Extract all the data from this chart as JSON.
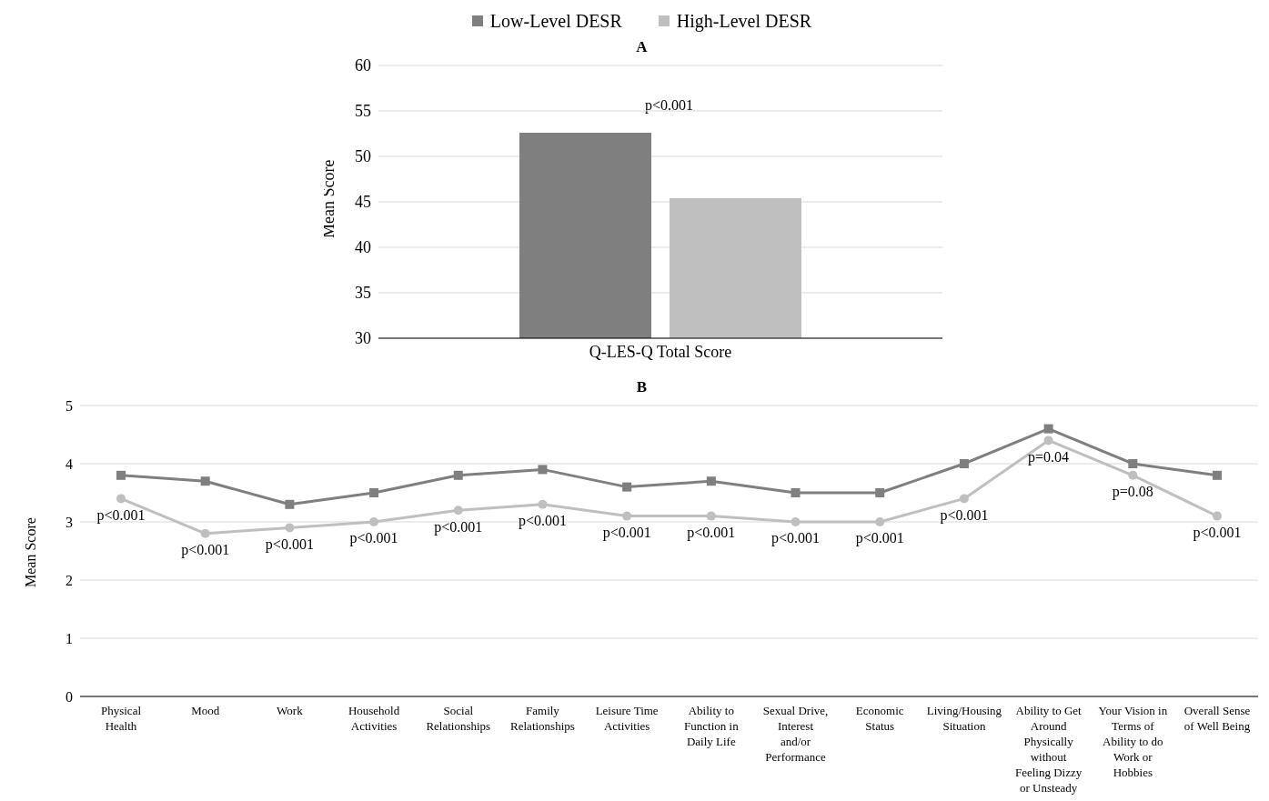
{
  "chart_data": [
    {
      "type": "bar",
      "title": "A",
      "categories": [
        "Q-LES-Q Total Score"
      ],
      "ylabel": "Mean Score",
      "ylim": [
        30,
        60
      ],
      "yticks": [
        30,
        35,
        40,
        45,
        50,
        55,
        60
      ],
      "grid": "y",
      "legend": "top",
      "series": [
        {
          "name": "Low-Level DESR",
          "color": "#7f7f7f",
          "values": [
            52.6
          ]
        },
        {
          "name": "High-Level DESR",
          "color": "#bfbfbf",
          "values": [
            45.4
          ]
        }
      ],
      "annotations": [
        "p<0.001"
      ]
    },
    {
      "type": "line",
      "title": "B",
      "ylabel": "Mean Score",
      "ylim": [
        0,
        5
      ],
      "yticks": [
        0,
        1,
        2,
        3,
        4,
        5
      ],
      "grid": "y",
      "categories": [
        "Physical Health",
        "Mood",
        "Work",
        "Household Activities",
        "Social Relationships",
        "Family Relationships",
        "Leisure Time Activities",
        "Ability to Function in Daily Life",
        "Sexual Drive, Interest and/or Performance",
        "Economic Status",
        "Living/Housing Situation",
        "Ability to Get Around Physically without Feeling Dizzy or Unsteady",
        "Your Vision in Terms of Ability to do Work or Hobbies",
        "Overall Sense of Well Being"
      ],
      "series": [
        {
          "color": "#7f7f7f",
          "marker": "square",
          "values": [
            3.8,
            3.7,
            3.3,
            3.5,
            3.8,
            3.9,
            3.6,
            3.7,
            3.5,
            3.5,
            4.0,
            4.6,
            4.0,
            3.8
          ]
        },
        {
          "color": "#bfbfbf",
          "marker": "circle",
          "values": [
            3.4,
            2.8,
            2.9,
            3.0,
            3.2,
            3.3,
            3.1,
            3.1,
            3.0,
            3.0,
            3.4,
            4.4,
            3.8,
            3.1
          ]
        }
      ],
      "annotations": [
        {
          "text": "p<0.001",
          "x": "Physical Health",
          "y": 3.4
        },
        {
          "text": "p<0.001",
          "x": "Mood",
          "y": 2.8
        },
        {
          "text": "p<0.001",
          "x": "Work",
          "y": 2.9
        },
        {
          "text": "p<0.001",
          "x": "Household Activities",
          "y": 3.0
        },
        {
          "text": "p<0.001",
          "x": "Social Relationships",
          "y": 3.2
        },
        {
          "text": "p<0.001",
          "x": "Family Relationships",
          "y": 3.3
        },
        {
          "text": "p<0.001",
          "x": "Leisure Time Activities",
          "y": 3.1
        },
        {
          "text": "p<0.001",
          "x": "Ability to Function in Daily Life",
          "y": 3.1
        },
        {
          "text": "p<0.001",
          "x": "Sexual Drive, Interest and/or Performance",
          "y": 3.0
        },
        {
          "text": "p<0.001",
          "x": "Economic Status",
          "y": 3.0
        },
        {
          "text": "p<0.001",
          "x": "Living/Housing Situation",
          "y": 3.4
        },
        {
          "text": "p=0.04",
          "x": "Ability to Get Around Physically without Feeling Dizzy or Unsteady",
          "y": 4.4
        },
        {
          "text": "p=0.08",
          "x": "Your Vision in Terms of Ability to do Work or Hobbies",
          "y": 3.8
        },
        {
          "text": "p<0.001",
          "x": "Overall Sense of Well Being",
          "y": 3.1
        }
      ]
    }
  ]
}
